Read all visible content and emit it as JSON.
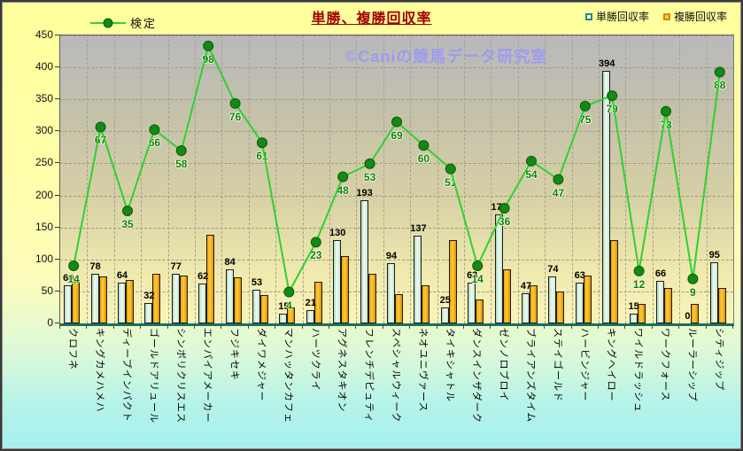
{
  "title": "単勝、複勝回収率",
  "watermark": "©Caniの競馬データ研究室",
  "legend": {
    "line_label": "検定",
    "win_label": "単勝回収率",
    "place_label": "複勝回収率"
  },
  "colors": {
    "title": "#a00000",
    "line": "#2fd12f",
    "line_marker": "#138a13",
    "line_label_text": "#157a15",
    "win_bar": "#e8f8ee",
    "place_bar": "#ffb400",
    "axis_bottom": "#1b6e5f",
    "watermark": "#9c9cf0",
    "background_top": "#ffff9c",
    "background_bottom": "#a6f0f0",
    "plot_top": "#b9b9bd",
    "plot_bottom": "#f9f5ba"
  },
  "chart_data": {
    "type": "bar",
    "title": "単勝、複勝回収率",
    "categories": [
      "クロフネ",
      "キングカメハメハ",
      "ディープインパクト",
      "ゴールドアリュール",
      "シンボリクリスエス",
      "エンパイアメーカー",
      "フジキセキ",
      "ダイワメジャー",
      "マンハッタンカフェ",
      "ハーツクライ",
      "アグネスタキオン",
      "フレンチデピュティ",
      "スペシャルウィーク",
      "ネオユニヴァース",
      "タイキシャトル",
      "ダンスインザダーク",
      "ゼンノロブロイ",
      "ブライアンズタイム",
      "ステイゴールド",
      "ハービンジャー",
      "キングヘイロー",
      "ワイルドラッシュ",
      "ワークフォース",
      "ルーラーシップ",
      "シティジップ"
    ],
    "series": [
      {
        "name": "単勝回収率",
        "type": "bar",
        "values": [
          60,
          78,
          64,
          32,
          77,
          62,
          84,
          53,
          15,
          21,
          130,
          193,
          94,
          137,
          25,
          63,
          170,
          47,
          74,
          63,
          394,
          15,
          66,
          0,
          95
        ],
        "labeled": true
      },
      {
        "name": "複勝回収率",
        "type": "bar",
        "values": [
          65,
          73,
          68,
          78,
          75,
          139,
          72,
          44,
          25,
          65,
          105,
          77,
          46,
          59,
          130,
          38,
          85,
          60,
          50,
          75,
          130,
          30,
          55,
          30,
          55
        ],
        "labeled": false
      },
      {
        "name": "検定",
        "type": "line",
        "values": [
          14,
          67,
          35,
          66,
          58,
          98,
          76,
          61,
          4,
          23,
          48,
          53,
          69,
          60,
          51,
          14,
          36,
          54,
          47,
          75,
          79,
          12,
          73,
          9,
          88
        ],
        "labeled": true
      }
    ],
    "ylabel": "",
    "xlabel": "",
    "ylim": [
      0,
      450
    ],
    "yticks": [
      0,
      50,
      100,
      150,
      200,
      250,
      300,
      350,
      400,
      450
    ],
    "layout": {
      "legend_position": "top",
      "grid": "dashed",
      "secondary_ylim_hidden": [
        -8,
        102
      ],
      "bar_label_color": "#000000",
      "line_label_color": "#157a15"
    }
  }
}
